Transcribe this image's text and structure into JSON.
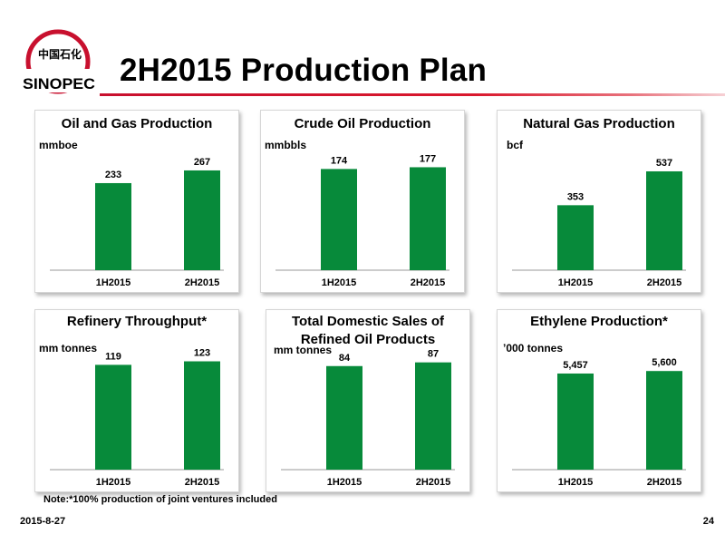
{
  "title": "2H2015 Production Plan",
  "logo": {
    "chinese_text": "中国石化",
    "brand_text": "SINOPEC"
  },
  "colors": {
    "bar": "#078a3a",
    "accent_red": "#c8102e"
  },
  "note": "Note:*100% production of joint ventures included",
  "footer": {
    "date": "2015-8-27",
    "page": "24"
  },
  "panels": [
    {
      "title_lines": [
        "Oil and Gas Production"
      ],
      "unit": "mmboe",
      "chart_data": {
        "type": "bar",
        "title": "Oil and Gas Production",
        "ylabel": "mmboe",
        "categories": [
          "1H2015",
          "2H2015"
        ],
        "values": [
          233,
          267
        ],
        "value_labels": [
          "233",
          "267"
        ],
        "ylim": [
          0,
          330
        ]
      }
    },
    {
      "title_lines": [
        "Crude Oil Production"
      ],
      "unit": "mmbbls",
      "chart_data": {
        "type": "bar",
        "title": "Crude Oil Production",
        "ylabel": "mmbbls",
        "categories": [
          "1H2015",
          "2H2015"
        ],
        "values": [
          174,
          177
        ],
        "value_labels": [
          "174",
          "177"
        ],
        "ylim": [
          0,
          212
        ]
      }
    },
    {
      "title_lines": [
        "Natural Gas Production"
      ],
      "unit": "bcf",
      "chart_data": {
        "type": "bar",
        "title": "Natural Gas Production",
        "ylabel": "bcf",
        "categories": [
          "1H2015",
          "2H2015"
        ],
        "values": [
          353,
          537
        ],
        "value_labels": [
          "353",
          "537"
        ],
        "ylim": [
          0,
          670
        ]
      }
    },
    {
      "title_lines": [
        "Refinery Throughput*"
      ],
      "unit": "mm tonnes",
      "chart_data": {
        "type": "bar",
        "title": "Refinery Throughput*",
        "ylabel": "mm tonnes",
        "categories": [
          "1H2015",
          "2H2015"
        ],
        "values": [
          119,
          123
        ],
        "value_labels": [
          "119",
          "123"
        ],
        "ylim": [
          0,
          140
        ]
      }
    },
    {
      "title_lines": [
        "Total Domestic Sales of",
        "Refined Oil Products"
      ],
      "unit": "mm tonnes",
      "chart_data": {
        "type": "bar",
        "title": "Total Domestic Sales of Refined Oil Products",
        "ylabel": "mm tonnes",
        "categories": [
          "1H2015",
          "2H2015"
        ],
        "values": [
          84,
          87
        ],
        "value_labels": [
          "84",
          "87"
        ],
        "ylim": [
          0,
          100
        ]
      }
    },
    {
      "title_lines": [
        "Ethylene Production*"
      ],
      "unit": "’000 tonnes",
      "chart_data": {
        "type": "bar",
        "title": "Ethylene Production*",
        "ylabel": "’000 tonnes",
        "categories": [
          "1H2015",
          "2H2015"
        ],
        "values": [
          5457,
          5600
        ],
        "value_labels": [
          "5,457",
          "5,600"
        ],
        "ylim": [
          0,
          7000
        ]
      }
    }
  ]
}
